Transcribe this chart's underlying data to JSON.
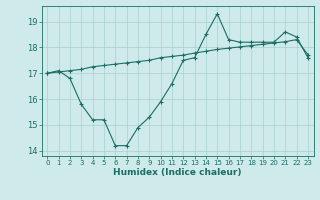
{
  "xlabel": "Humidex (Indice chaleur)",
  "background_color": "#ceeaea",
  "grid_color": "#aacfcf",
  "line_color": "#1a6e64",
  "xlim": [
    -0.5,
    23.5
  ],
  "ylim": [
    13.8,
    19.6
  ],
  "yticks": [
    14,
    15,
    16,
    17,
    18,
    19
  ],
  "xticks": [
    0,
    1,
    2,
    3,
    4,
    5,
    6,
    7,
    8,
    9,
    10,
    11,
    12,
    13,
    14,
    15,
    16,
    17,
    18,
    19,
    20,
    21,
    22,
    23
  ],
  "series1_x": [
    0,
    1,
    2,
    3,
    4,
    5,
    6,
    7,
    8,
    9,
    10,
    11,
    12,
    13,
    14,
    15,
    16,
    17,
    18,
    19,
    20,
    21,
    22,
    23
  ],
  "series1_y": [
    17.0,
    17.1,
    16.8,
    15.8,
    15.2,
    15.2,
    14.2,
    14.2,
    14.9,
    15.3,
    15.9,
    16.6,
    17.5,
    17.6,
    18.5,
    19.3,
    18.3,
    18.2,
    18.2,
    18.2,
    18.2,
    18.6,
    18.4,
    17.6
  ],
  "series2_x": [
    0,
    1,
    2,
    3,
    4,
    5,
    6,
    7,
    8,
    9,
    10,
    11,
    12,
    13,
    14,
    15,
    16,
    17,
    18,
    19,
    20,
    21,
    22,
    23
  ],
  "series2_y": [
    17.0,
    17.05,
    17.1,
    17.15,
    17.25,
    17.3,
    17.35,
    17.4,
    17.45,
    17.5,
    17.6,
    17.65,
    17.7,
    17.78,
    17.85,
    17.92,
    17.97,
    18.02,
    18.07,
    18.12,
    18.17,
    18.22,
    18.3,
    17.72
  ]
}
